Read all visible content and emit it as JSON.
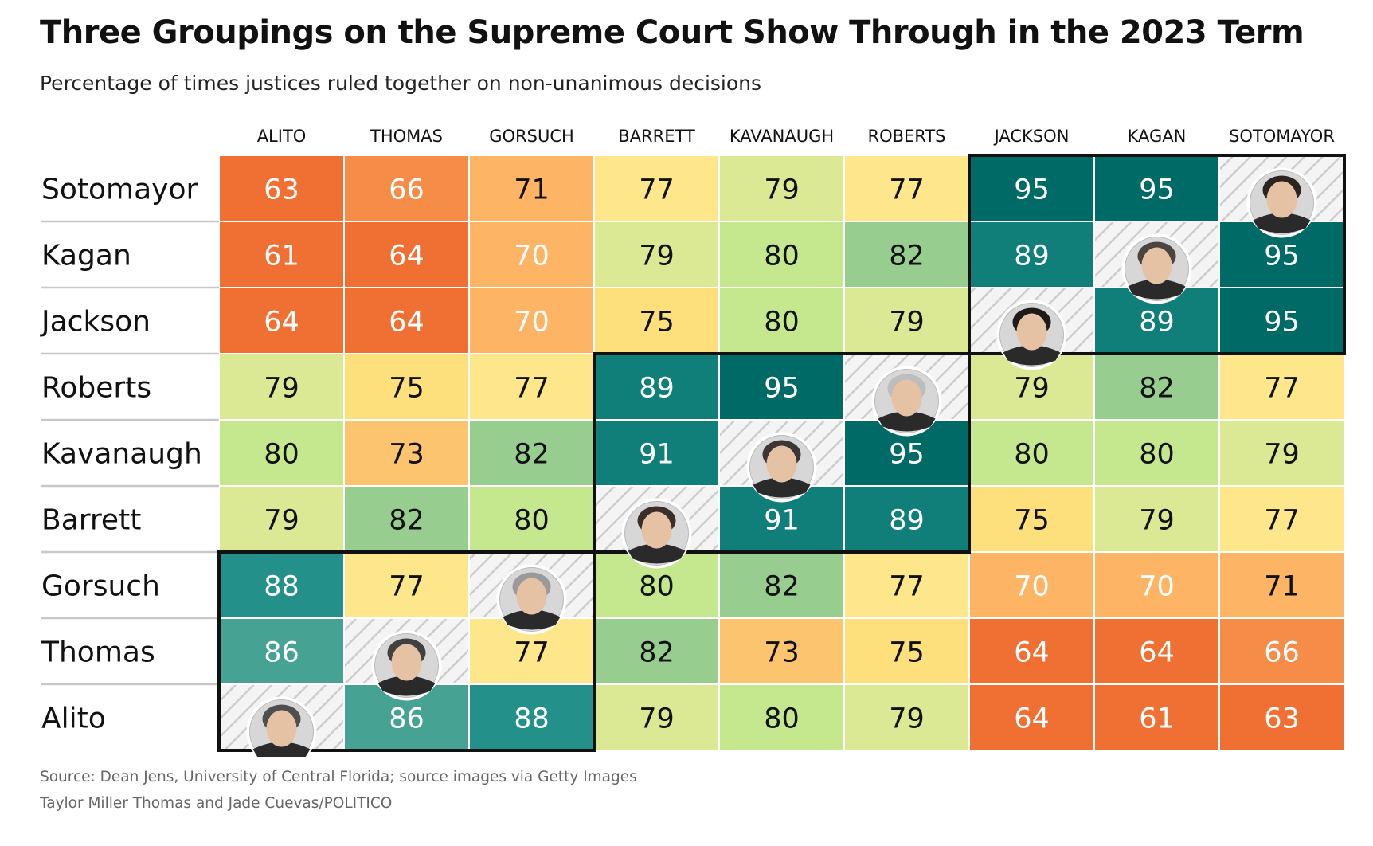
{
  "title": "Three Groupings on the Supreme Court Show Through in the 2023 Term",
  "subtitle": "Percentage of times justices ruled together on non-unanimous decisions",
  "source": "Source: Dean Jens, University of Central Florida; source images via Getty Images",
  "credit": "Taylor Miller Thomas and Jade Cuevas/POLITICO",
  "colors": {
    "scale_63": "#f07034",
    "scale_66": "#f58c48",
    "scale_70": "#fdb464",
    "scale_73": "#fdc470",
    "scale_75": "#fddf7b",
    "scale_77": "#fde78a",
    "scale_79": "#dbe995",
    "scale_80": "#c5e78e",
    "scale_82": "#98cd90",
    "scale_86": "#46a394",
    "scale_88": "#24908a",
    "scale_89": "#107f7a",
    "scale_95": "#006a66",
    "diagonal": "#cccccc",
    "group_border": "#111111"
  },
  "chart_data": {
    "type": "heatmap",
    "columns": [
      "ALITO",
      "THOMAS",
      "GORSUCH",
      "BARRETT",
      "KAVANAUGH",
      "ROBERTS",
      "JACKSON",
      "KAGAN",
      "SOTOMAYOR"
    ],
    "rows": [
      "Sotomayor",
      "Kagan",
      "Jackson",
      "Roberts",
      "Kavanaugh",
      "Barrett",
      "Gorsuch",
      "Thomas",
      "Alito"
    ],
    "values": [
      [
        63,
        66,
        71,
        77,
        79,
        77,
        95,
        95,
        null
      ],
      [
        61,
        64,
        70,
        79,
        80,
        82,
        89,
        null,
        95
      ],
      [
        64,
        64,
        70,
        75,
        80,
        79,
        null,
        89,
        95
      ],
      [
        79,
        75,
        77,
        89,
        95,
        null,
        79,
        82,
        77
      ],
      [
        80,
        73,
        82,
        91,
        null,
        95,
        80,
        80,
        79
      ],
      [
        79,
        82,
        80,
        null,
        91,
        89,
        75,
        79,
        77
      ],
      [
        88,
        77,
        null,
        80,
        82,
        77,
        70,
        70,
        71
      ],
      [
        86,
        null,
        77,
        82,
        73,
        75,
        64,
        64,
        66
      ],
      [
        null,
        86,
        88,
        79,
        80,
        79,
        64,
        61,
        63
      ]
    ],
    "groups": [
      {
        "rows": [
          "Sotomayor",
          "Kagan",
          "Jackson"
        ],
        "columns": [
          "JACKSON",
          "KAGAN",
          "SOTOMAYOR"
        ]
      },
      {
        "rows": [
          "Roberts",
          "Kavanaugh",
          "Barrett"
        ],
        "columns": [
          "BARRETT",
          "KAVANAUGH",
          "ROBERTS"
        ]
      },
      {
        "rows": [
          "Gorsuch",
          "Thomas",
          "Alito"
        ],
        "columns": [
          "ALITO",
          "THOMAS",
          "GORSUCH"
        ]
      }
    ],
    "diagonal": "justice portrait photos",
    "legend": "none",
    "grid": true
  }
}
